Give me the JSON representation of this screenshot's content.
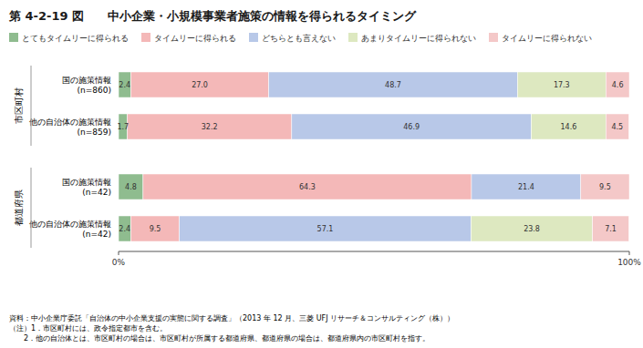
{
  "chart_data": {
    "type": "bar",
    "orientation": "horizontal",
    "stacked": true,
    "title": "第 4-2-19 図　　中小企業・小規模事業者施策の情報を得られるタイミング",
    "categories": [
      "国の施策情報\n(n=860)",
      "他の自治体の施策情報\n(n=859)",
      "国の施策情報\n(n=42)",
      "他の自治体の施策情報\n(n=42)"
    ],
    "category_groups": [
      {
        "label": "市区町村",
        "count": 2
      },
      {
        "label": "都道府県",
        "count": 2
      }
    ],
    "series": [
      {
        "name": "とてもタイムリーに得られる",
        "color": "#8fbc8f",
        "values": [
          2.4,
          1.7,
          4.8,
          2.4
        ],
        "value_labels": [
          "2.4",
          "1.7",
          "4.8",
          "2.4"
        ]
      },
      {
        "name": "タイムリーに得られる",
        "color": "#f4b8b8",
        "values": [
          27.0,
          32.2,
          64.3,
          9.5
        ],
        "value_labels": [
          "27.0",
          "32.2",
          "64.3",
          "9.5"
        ]
      },
      {
        "name": "どちらとも言えない",
        "color": "#b8c8e8",
        "values": [
          48.7,
          46.9,
          21.4,
          57.1
        ],
        "value_labels": [
          "48.7",
          "46.9",
          "21.4",
          "57.1"
        ]
      },
      {
        "name": "あまりタイムリーに得られない",
        "color": "#dde8c0",
        "values": [
          17.3,
          14.6,
          0.0,
          23.8
        ],
        "value_labels": [
          "17.3",
          "14.6",
          null,
          "23.8"
        ]
      },
      {
        "name": "タイムリーに得られない",
        "color": "#f4c8c8",
        "values": [
          4.6,
          4.5,
          9.5,
          7.1
        ],
        "value_labels": [
          "4.6",
          "4.5",
          "9.5",
          "7.1"
        ]
      }
    ],
    "xlim": [
      0,
      100
    ],
    "xticks": [
      {
        "value": 0,
        "label": "0%"
      },
      {
        "value": 100,
        "label": "100%"
      }
    ],
    "data_labels": true,
    "legend": "top",
    "grid": false,
    "footer": "資料：中小企業庁委託「自治体の中小企業支援の実態に関する調査」（2013 年 12 月、三菱 UFJ リサーチ＆コンサルティング（株））\n（注）1．市区町村には、政令指定都市を含む。\n　　2．他の自治体とは、市区町村の場合は、市区町村が所属する都道府県、都道府県の場合は、都道府県内の市区町村を指す。"
  }
}
